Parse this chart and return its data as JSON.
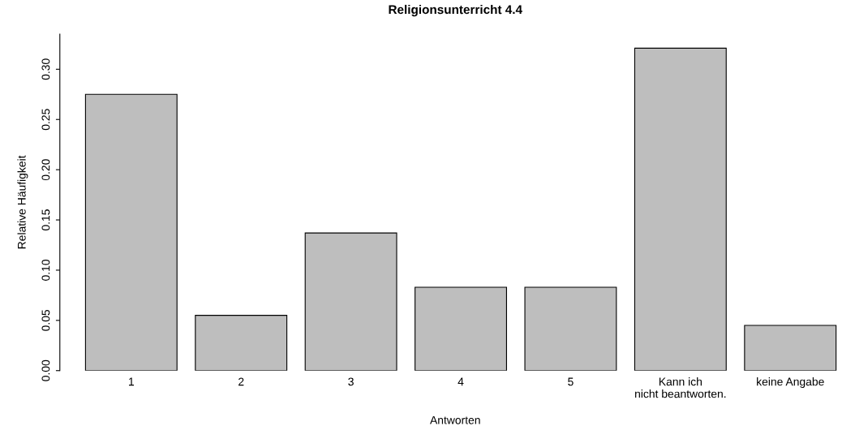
{
  "chart_data": {
    "type": "bar",
    "title": "Religionsunterricht 4.4",
    "xlabel": "Antworten",
    "ylabel": "Relative Häufigkeit",
    "categories": [
      "1",
      "2",
      "3",
      "4",
      "5",
      "Kann ich\nnicht beantworten.",
      "keine Angabe"
    ],
    "values": [
      0.275,
      0.055,
      0.137,
      0.083,
      0.083,
      0.321,
      0.045
    ],
    "color": "#bebebe",
    "ylim": [
      0,
      0.335
    ],
    "yticks": [
      {
        "value": 0,
        "label": "0.00"
      },
      {
        "value": 0.05,
        "label": "0.05"
      },
      {
        "value": 0.1,
        "label": "0.10"
      },
      {
        "value": 0.15,
        "label": "0.15"
      },
      {
        "value": 0.2,
        "label": "0.20"
      },
      {
        "value": 0.25,
        "label": "0.25"
      },
      {
        "value": 0.3,
        "label": "0.30"
      }
    ],
    "grid": false
  }
}
